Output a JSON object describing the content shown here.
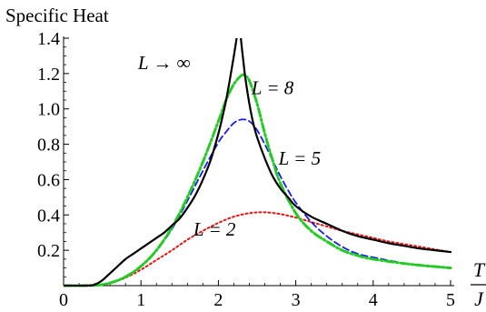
{
  "chart_data": {
    "type": "line",
    "title": "",
    "ylabel": "Specific Heat",
    "xlabel": {
      "numerator": "T",
      "denominator": "J"
    },
    "xlim": [
      0,
      5
    ],
    "ylim": [
      0,
      1.4
    ],
    "x_ticks": [
      0,
      1,
      2,
      3,
      4,
      5
    ],
    "x_tick_labels": [
      "0",
      "1",
      "2",
      "3",
      "4",
      "5"
    ],
    "y_ticks": [
      0.2,
      0.4,
      0.6,
      0.8,
      1.0,
      1.2,
      1.4
    ],
    "y_tick_labels": [
      "0.2",
      "0.4",
      "0.6",
      "0.8",
      "1.0",
      "1.2",
      "1.4"
    ],
    "grid": false,
    "series": [
      {
        "name": "L → ∞",
        "color": "#000000",
        "style": "solid",
        "label_at": [
          1.3,
          1.26
        ],
        "x": [
          0,
          0.3,
          0.4,
          0.5,
          0.6,
          0.7,
          0.8,
          0.9,
          1.0,
          1.1,
          1.2,
          1.3,
          1.4,
          1.5,
          1.6,
          1.7,
          1.8,
          1.9,
          2.0,
          2.05,
          2.1,
          2.15,
          2.2,
          2.25,
          2.269
        ],
        "y": [
          0.0,
          0.0,
          0.005,
          0.03,
          0.07,
          0.11,
          0.15,
          0.18,
          0.21,
          0.24,
          0.27,
          0.3,
          0.34,
          0.38,
          0.44,
          0.51,
          0.6,
          0.71,
          0.86,
          0.95,
          1.05,
          1.17,
          1.3,
          1.44,
          1.5
        ],
        "x2": [
          2.269,
          2.29,
          2.32,
          2.35,
          2.4,
          2.45,
          2.5,
          2.6,
          2.7,
          2.8,
          2.9,
          3.0,
          3.2,
          3.4,
          3.6,
          3.8,
          4.0,
          4.2,
          4.4,
          4.6,
          4.8,
          5.0
        ],
        "y2": [
          1.5,
          1.4,
          1.28,
          1.17,
          1.03,
          0.92,
          0.84,
          0.72,
          0.62,
          0.55,
          0.5,
          0.45,
          0.39,
          0.35,
          0.31,
          0.28,
          0.26,
          0.24,
          0.225,
          0.21,
          0.2,
          0.19
        ]
      },
      {
        "name": "L = 8",
        "color": "#22cc22",
        "style": "dash-dot",
        "label_at": [
          2.7,
          1.12
        ],
        "x": [
          0,
          0.4,
          0.6,
          0.8,
          1.0,
          1.2,
          1.4,
          1.6,
          1.8,
          2.0,
          2.1,
          2.2,
          2.3,
          2.35,
          2.4,
          2.5,
          2.6,
          2.7,
          2.8,
          3.0,
          3.2,
          3.4,
          3.6,
          3.8,
          4.0,
          4.5,
          5.0
        ],
        "y": [
          0.0,
          0.002,
          0.015,
          0.05,
          0.11,
          0.2,
          0.33,
          0.5,
          0.7,
          0.93,
          1.05,
          1.14,
          1.19,
          1.185,
          1.16,
          1.03,
          0.86,
          0.71,
          0.58,
          0.41,
          0.31,
          0.25,
          0.2,
          0.17,
          0.15,
          0.12,
          0.1
        ]
      },
      {
        "name": "L = 5",
        "color": "#1a1aee",
        "style": "dashed",
        "label_at": [
          3.05,
          0.72
        ],
        "x": [
          0,
          0.4,
          0.6,
          0.8,
          1.0,
          1.2,
          1.4,
          1.6,
          1.8,
          2.0,
          2.1,
          2.2,
          2.3,
          2.4,
          2.5,
          2.6,
          2.7,
          2.8,
          2.9,
          3.0,
          3.2,
          3.4,
          3.6,
          3.8,
          4.0,
          4.5,
          5.0
        ],
        "y": [
          0.0,
          0.002,
          0.015,
          0.05,
          0.11,
          0.2,
          0.32,
          0.48,
          0.65,
          0.81,
          0.87,
          0.92,
          0.94,
          0.93,
          0.88,
          0.8,
          0.71,
          0.62,
          0.54,
          0.47,
          0.36,
          0.28,
          0.22,
          0.18,
          0.16,
          0.12,
          0.1
        ]
      },
      {
        "name": "L = 2",
        "color": "#ee1111",
        "style": "dotted",
        "label_at": [
          1.95,
          0.32
        ],
        "x": [
          0,
          0.4,
          0.6,
          0.8,
          1.0,
          1.2,
          1.4,
          1.6,
          1.8,
          2.0,
          2.2,
          2.4,
          2.6,
          2.8,
          3.0,
          3.2,
          3.4,
          3.6,
          3.8,
          4.0,
          4.2,
          4.4,
          4.6,
          4.8,
          5.0
        ],
        "y": [
          0.0,
          0.003,
          0.015,
          0.045,
          0.09,
          0.145,
          0.2,
          0.26,
          0.31,
          0.355,
          0.39,
          0.41,
          0.415,
          0.405,
          0.385,
          0.36,
          0.335,
          0.31,
          0.29,
          0.27,
          0.25,
          0.235,
          0.22,
          0.205,
          0.19
        ]
      }
    ]
  }
}
